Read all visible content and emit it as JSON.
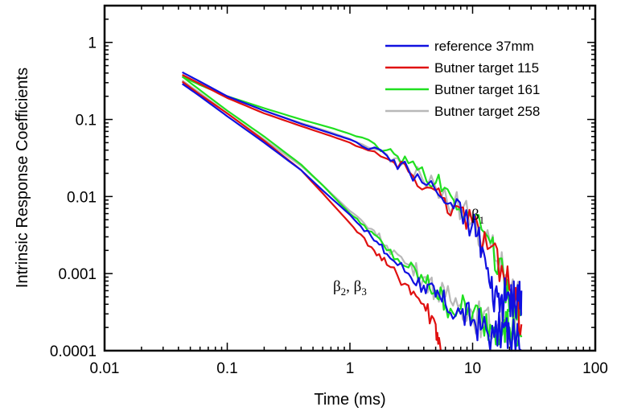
{
  "chart_data": {
    "type": "line",
    "xlabel": "Time (ms)",
    "ylabel": "Intrinsic Response Coefficients",
    "x_scale": "log",
    "y_scale": "log",
    "xlim": [
      0.01,
      100
    ],
    "ylim": [
      0.0001,
      3
    ],
    "x_ticks": [
      "0.01",
      "0.1",
      "1",
      "10",
      "100"
    ],
    "y_ticks": [
      "0.0001",
      "0.001",
      "0.01",
      "0.1",
      "1"
    ],
    "grid": false,
    "legend_position": "top-right",
    "annotations": {
      "beta1": {
        "symbol": "β",
        "sub": "1"
      },
      "beta23": {
        "symbol1": "β",
        "sub1": "2",
        "sep": ", ",
        "symbol2": "β",
        "sub2": "3"
      }
    },
    "series": [
      {
        "name": "reference 37mm",
        "color": "#1010e0",
        "beta1": [
          [
            0.043,
            0.41
          ],
          [
            0.06,
            0.31
          ],
          [
            0.1,
            0.2
          ],
          [
            0.2,
            0.13
          ],
          [
            0.4,
            0.088
          ],
          [
            0.7,
            0.066
          ],
          [
            1,
            0.055
          ],
          [
            2,
            0.034
          ],
          [
            3,
            0.022
          ],
          [
            5,
            0.012
          ],
          [
            7,
            0.007
          ],
          [
            10,
            0.0045
          ],
          [
            12,
            0.0022
          ],
          [
            14,
            0.00065
          ],
          [
            16,
            0.0005
          ],
          [
            18,
            0.00045
          ],
          [
            20,
            0.0005
          ],
          [
            22,
            0.0004
          ],
          [
            24,
            0.00045
          ],
          [
            25,
            0.0006
          ]
        ],
        "beta23": [
          [
            0.043,
            0.29
          ],
          [
            0.06,
            0.2
          ],
          [
            0.1,
            0.11
          ],
          [
            0.2,
            0.05
          ],
          [
            0.4,
            0.022
          ],
          [
            0.6,
            0.012
          ],
          [
            1,
            0.0058
          ],
          [
            1.5,
            0.003
          ],
          [
            2,
            0.0018
          ],
          [
            3,
            0.001
          ],
          [
            4,
            0.0007
          ],
          [
            5,
            0.0005
          ],
          [
            6,
            0.0004
          ],
          [
            8,
            0.0003
          ],
          [
            10,
            0.00025
          ],
          [
            12,
            0.0002
          ],
          [
            15,
            0.00015
          ],
          [
            18,
            0.0002
          ],
          [
            20,
            0.00015
          ],
          [
            25,
            0.0001
          ]
        ]
      },
      {
        "name": "Butner target 115",
        "color": "#e01010",
        "beta1": [
          [
            0.043,
            0.38
          ],
          [
            0.06,
            0.29
          ],
          [
            0.1,
            0.19
          ],
          [
            0.2,
            0.12
          ],
          [
            0.4,
            0.082
          ],
          [
            0.7,
            0.061
          ],
          [
            1,
            0.05
          ],
          [
            2,
            0.031
          ],
          [
            3,
            0.021
          ],
          [
            5,
            0.012
          ],
          [
            7,
            0.0075
          ],
          [
            10,
            0.0045
          ],
          [
            14,
            0.0022
          ],
          [
            18,
            0.0009
          ],
          [
            22,
            0.0004
          ],
          [
            25,
            0.00022
          ]
        ],
        "beta23": [
          [
            0.043,
            0.31
          ],
          [
            0.06,
            0.21
          ],
          [
            0.1,
            0.12
          ],
          [
            0.2,
            0.053
          ],
          [
            0.4,
            0.022
          ],
          [
            0.6,
            0.011
          ],
          [
            1,
            0.0045
          ],
          [
            1.5,
            0.0022
          ],
          [
            2,
            0.0013
          ],
          [
            3,
            0.0007
          ],
          [
            4,
            0.0004
          ],
          [
            5,
            0.00022
          ],
          [
            5.5,
            0.0001
          ]
        ]
      },
      {
        "name": "Butner target 161",
        "color": "#20e020",
        "beta1": [
          [
            0.043,
            0.36
          ],
          [
            0.06,
            0.28
          ],
          [
            0.1,
            0.2
          ],
          [
            0.2,
            0.14
          ],
          [
            0.4,
            0.1
          ],
          [
            0.7,
            0.078
          ],
          [
            1,
            0.065
          ],
          [
            2,
            0.04
          ],
          [
            3,
            0.027
          ],
          [
            5,
            0.015
          ],
          [
            7,
            0.009
          ],
          [
            10,
            0.005
          ],
          [
            14,
            0.0025
          ],
          [
            18,
            0.0009
          ],
          [
            22,
            0.0004
          ],
          [
            25,
            0.0003
          ]
        ],
        "beta23": [
          [
            0.043,
            0.36
          ],
          [
            0.06,
            0.24
          ],
          [
            0.1,
            0.13
          ],
          [
            0.2,
            0.06
          ],
          [
            0.4,
            0.026
          ],
          [
            0.6,
            0.014
          ],
          [
            1,
            0.006
          ],
          [
            1.5,
            0.0035
          ],
          [
            2,
            0.002
          ],
          [
            3,
            0.0012
          ],
          [
            4,
            0.0008
          ],
          [
            5,
            0.0006
          ],
          [
            6,
            0.0004
          ],
          [
            8,
            0.00035
          ],
          [
            10,
            0.0003
          ],
          [
            12,
            0.00025
          ],
          [
            15,
            0.0002
          ],
          [
            18,
            0.00025
          ],
          [
            20,
            0.0002
          ],
          [
            25,
            0.00015
          ]
        ]
      },
      {
        "name": "Butner target 258",
        "color": "#b8b8b8",
        "beta1": [
          [
            0.043,
            0.37
          ],
          [
            0.06,
            0.29
          ],
          [
            0.1,
            0.2
          ],
          [
            0.2,
            0.13
          ],
          [
            0.4,
            0.09
          ],
          [
            0.7,
            0.068
          ],
          [
            1,
            0.056
          ],
          [
            2,
            0.035
          ],
          [
            3,
            0.023
          ],
          [
            5,
            0.013
          ],
          [
            7,
            0.008
          ],
          [
            10,
            0.0047
          ],
          [
            14,
            0.0023
          ],
          [
            18,
            0.0009
          ],
          [
            22,
            0.0005
          ],
          [
            25,
            0.0003
          ]
        ],
        "beta23": [
          [
            0.043,
            0.32
          ],
          [
            0.06,
            0.22
          ],
          [
            0.1,
            0.12
          ],
          [
            0.2,
            0.055
          ],
          [
            0.4,
            0.025
          ],
          [
            0.6,
            0.014
          ],
          [
            1,
            0.0065
          ],
          [
            1.5,
            0.0038
          ],
          [
            2,
            0.0023
          ],
          [
            3,
            0.0013
          ],
          [
            4,
            0.0009
          ],
          [
            5,
            0.0006
          ],
          [
            6,
            0.0005
          ],
          [
            8,
            0.0004
          ],
          [
            10,
            0.0003
          ],
          [
            12,
            0.00025
          ],
          [
            15,
            0.0002
          ],
          [
            18,
            0.00025
          ],
          [
            20,
            0.0002
          ],
          [
            25,
            0.00015
          ]
        ]
      }
    ]
  }
}
